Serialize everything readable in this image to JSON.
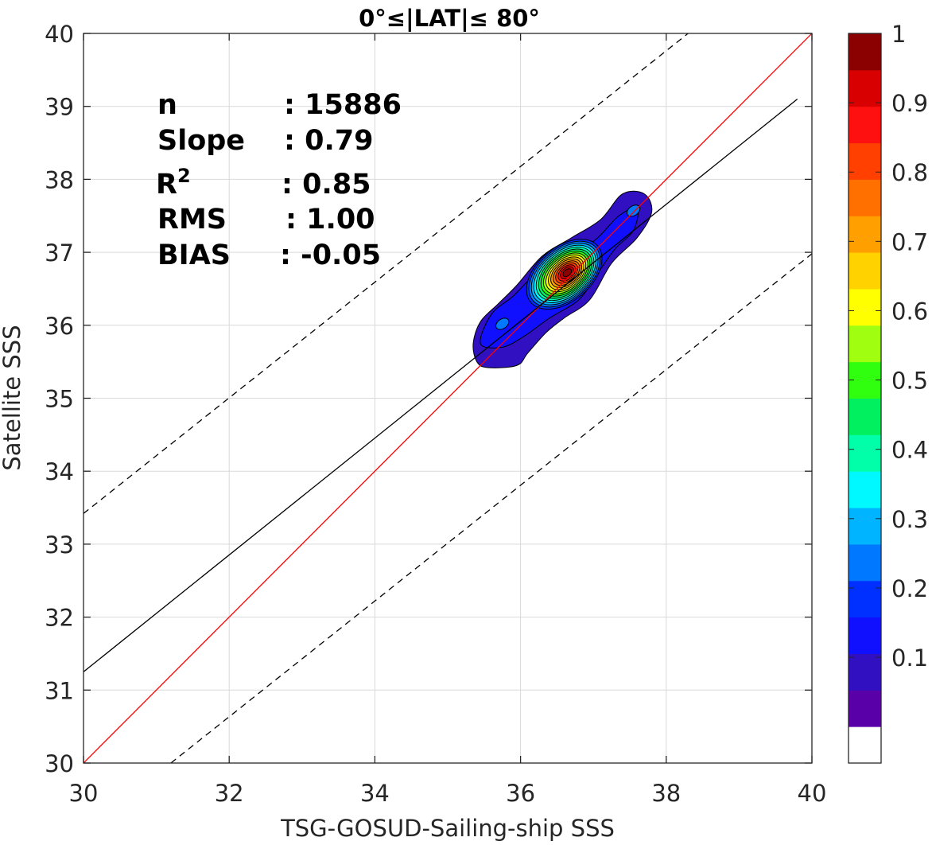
{
  "chart_data": {
    "type": "contour",
    "title": "0°≤|LAT|≤ 80°",
    "xlabel": "TSG-GOSUD-Sailing-ship SSS",
    "ylabel": "Satellite SSS",
    "xlim": [
      30,
      40
    ],
    "ylim": [
      30,
      40
    ],
    "xticks": [
      "30",
      "32",
      "34",
      "36",
      "38",
      "40"
    ],
    "yticks": [
      "30",
      "31",
      "32",
      "33",
      "34",
      "35",
      "36",
      "37",
      "38",
      "39",
      "40"
    ],
    "grid": true,
    "stats": [
      {
        "label": "n",
        "value": ": 15886"
      },
      {
        "label": "Slope",
        "value": ": 0.79"
      },
      {
        "label": "R",
        "sup": "2",
        "value": ": 0.85"
      },
      {
        "label": "RMS",
        "value": ": 1.00"
      },
      {
        "label": "BIAS",
        "value": ": -0.05"
      }
    ],
    "lines": {
      "identity": {
        "color": "#ff0000",
        "slope": 1,
        "intercept": 0
      },
      "fit": {
        "color": "#000000",
        "slope": 0.79,
        "x_from": 30,
        "x_to": 39.8,
        "y_at_30": 31.25,
        "y_at_39_8": 39.1
      },
      "offset_upper": {
        "color": "#000000",
        "style": "dashed",
        "x_from": 30,
        "y_at_from": 33.42,
        "x_to": 38.3,
        "y_at_to": 40
      },
      "offset_lower": {
        "color": "#000000",
        "style": "dashed",
        "x_from": 31.2,
        "y_at_from": 30,
        "x_to": 40,
        "y_at_to": 36.98
      }
    },
    "density_peak": {
      "x": 36.6,
      "y": 36.7
    },
    "secondary_peaks": [
      {
        "x": 35.75,
        "y": 36.02
      },
      {
        "x": 37.55,
        "y": 37.57
      }
    ],
    "colorbar": {
      "ticks": [
        "0.1",
        "0.2",
        "0.3",
        "0.4",
        "0.5",
        "0.6",
        "0.7",
        "0.8",
        "0.9",
        "1"
      ],
      "colors": [
        "#ffffff",
        "#5a00a8",
        "#3010c0",
        "#1010ff",
        "#0030ff",
        "#0078ff",
        "#00b4ff",
        "#00f8ff",
        "#00ffa8",
        "#00f060",
        "#30ff10",
        "#a0ff10",
        "#ffff00",
        "#ffd200",
        "#ffa000",
        "#ff7000",
        "#ff4000",
        "#ff1010",
        "#d80000",
        "#8b0000"
      ]
    }
  }
}
